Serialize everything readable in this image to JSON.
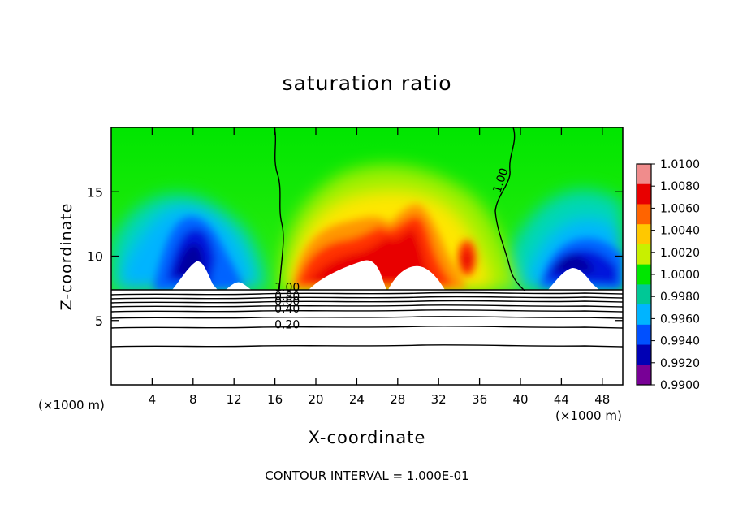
{
  "chart_data": {
    "type": "heatmap",
    "title": "saturation ratio",
    "xlabel": "X-coordinate",
    "ylabel": "Z-coordinate",
    "x_unit_label": "(×1000 m)",
    "xlim": [
      0,
      50
    ],
    "ylim": [
      0,
      20
    ],
    "x_ticks": [
      4,
      8,
      12,
      16,
      20,
      24,
      28,
      32,
      36,
      40,
      44,
      48
    ],
    "y_ticks": [
      5,
      10,
      15
    ],
    "colorbar": {
      "levels": [
        "1.0100",
        "1.0080",
        "1.0060",
        "1.0040",
        "1.0020",
        "1.0000",
        "0.9980",
        "0.9960",
        "0.9940",
        "0.9920",
        "0.9900"
      ],
      "colors": [
        "#f08c8c",
        "#e80000",
        "#ff6400",
        "#ffc800",
        "#c8f000",
        "#00e600",
        "#00c896",
        "#00b4ff",
        "#0050ff",
        "#0000b4",
        "#780096"
      ]
    },
    "contour_labels": [
      {
        "text": "1.00",
        "x": 17.2,
        "z": 7.3
      },
      {
        "text": "0.80",
        "x": 17.2,
        "z": 6.6
      },
      {
        "text": "0.60",
        "x": 17.2,
        "z": 6.2
      },
      {
        "text": "0.40",
        "x": 17.2,
        "z": 5.6
      },
      {
        "text": "0.20",
        "x": 17.2,
        "z": 4.4
      },
      {
        "text": "1.00",
        "x": 38.4,
        "z": 15.8
      }
    ],
    "footer": "CONTOUR INTERVAL = 1.000E-01"
  }
}
